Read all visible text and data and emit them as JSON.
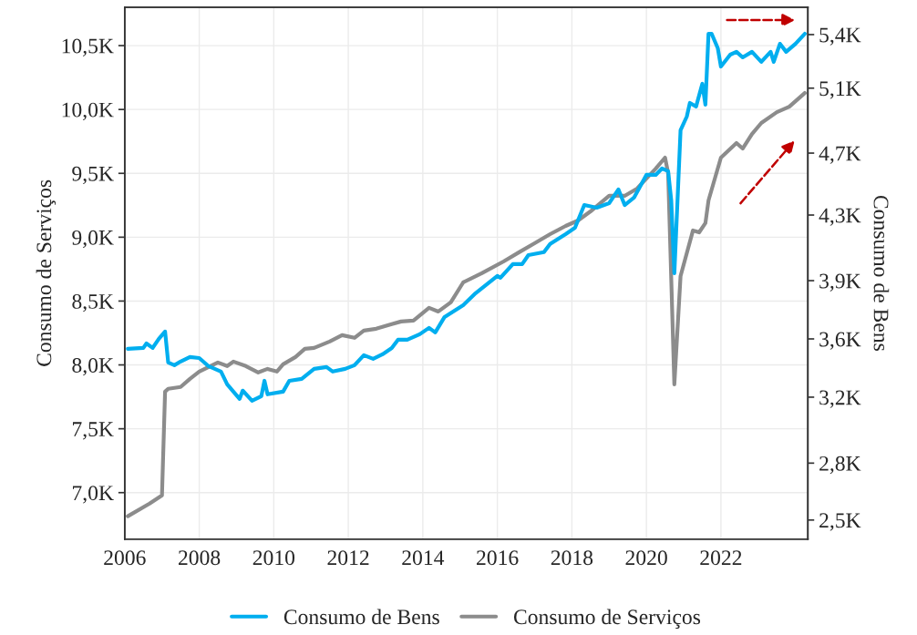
{
  "chart_data": {
    "type": "line",
    "xlabel": null,
    "ylabel": "Consumo de Serviços",
    "y2label": "Consumo de Bens",
    "xlim": [
      "2006-01",
      "2024-05"
    ],
    "xticks": [
      {
        "value": "2006",
        "label": "2006"
      },
      {
        "value": "2008",
        "label": "2008"
      },
      {
        "value": "2010",
        "label": "2010"
      },
      {
        "value": "2012",
        "label": "2012"
      },
      {
        "value": "2014",
        "label": "2014"
      },
      {
        "value": "2016",
        "label": "2016"
      },
      {
        "value": "2018",
        "label": "2018"
      },
      {
        "value": "2020",
        "label": "2020"
      },
      {
        "value": "2022",
        "label": "2022"
      }
    ],
    "ylim": [
      6.636,
      10.8
    ],
    "yticks": [
      {
        "value": 7.0,
        "label": "7,0K"
      },
      {
        "value": 7.5,
        "label": "7,5K"
      },
      {
        "value": 8.0,
        "label": "8,0K"
      },
      {
        "value": 8.5,
        "label": "8,5K"
      },
      {
        "value": 9.0,
        "label": "9,0K"
      },
      {
        "value": 9.5,
        "label": "9,5K"
      },
      {
        "value": 10.0,
        "label": "10,0K"
      },
      {
        "value": 10.5,
        "label": "10,5K"
      }
    ],
    "y2lim": [
      2.386,
      5.563
    ],
    "y2ticks": [
      {
        "value": 2.5,
        "label": "2,5K"
      },
      {
        "value": 2.84,
        "label": "2,8K"
      },
      {
        "value": 3.234,
        "label": "3,2K"
      },
      {
        "value": 3.582,
        "label": "3,6K"
      },
      {
        "value": 3.93,
        "label": "3,9K"
      },
      {
        "value": 4.322,
        "label": "4,3K"
      },
      {
        "value": 4.692,
        "label": "4,7K"
      },
      {
        "value": 5.08,
        "label": "5,1K"
      },
      {
        "value": 5.4,
        "label": "5,4K"
      }
    ],
    "grid": true,
    "legend": "bottom",
    "line_style": "solid",
    "marker": "none",
    "series": [
      {
        "name": "Consumo de Bens",
        "color": "#00aeef",
        "axis": "y2",
        "x": [
          "2006-02",
          "2006-07",
          "2006-08",
          "2006-10",
          "2006-12",
          "2007-02",
          "2007-03",
          "2007-05",
          "2007-07",
          "2007-10",
          "2008-01",
          "2008-04",
          "2008-08",
          "2008-10",
          "2008-12",
          "2009-02",
          "2009-03",
          "2009-06",
          "2009-09",
          "2009-10",
          "2009-11",
          "2010-04",
          "2010-06",
          "2010-10",
          "2011-02",
          "2011-06",
          "2011-08",
          "2011-12",
          "2012-03",
          "2012-06",
          "2012-09",
          "2012-12",
          "2013-03",
          "2013-05",
          "2013-08",
          "2013-12",
          "2014-03",
          "2014-05",
          "2014-08",
          "2015-02",
          "2015-06",
          "2016-01",
          "2016-02",
          "2016-06",
          "2016-09",
          "2016-11",
          "2017-04",
          "2017-06",
          "2017-11",
          "2018-02",
          "2018-05",
          "2018-09",
          "2019-01",
          "2019-04",
          "2019-06",
          "2019-09",
          "2020-01",
          "2020-04",
          "2020-06",
          "2020-08",
          "2020-09",
          "2020-10",
          "2020-12",
          "2021-02",
          "2021-03",
          "2021-05",
          "2021-07",
          "2021-08",
          "2021-09",
          "2021-10",
          "2021-12",
          "2022-01",
          "2022-04",
          "2022-06",
          "2022-08",
          "2022-11",
          "2023-02",
          "2023-05",
          "2023-06",
          "2023-08",
          "2023-10",
          "2024-01",
          "2024-04"
        ],
        "values": [
          3.523,
          3.528,
          3.555,
          3.528,
          3.583,
          3.626,
          3.441,
          3.425,
          3.447,
          3.474,
          3.468,
          3.419,
          3.387,
          3.311,
          3.267,
          3.224,
          3.273,
          3.213,
          3.24,
          3.332,
          3.251,
          3.267,
          3.332,
          3.343,
          3.403,
          3.414,
          3.387,
          3.403,
          3.425,
          3.485,
          3.463,
          3.49,
          3.528,
          3.577,
          3.577,
          3.61,
          3.648,
          3.621,
          3.713,
          3.784,
          3.855,
          3.958,
          3.947,
          4.029,
          4.029,
          4.083,
          4.1,
          4.149,
          4.208,
          4.246,
          4.382,
          4.366,
          4.393,
          4.475,
          4.382,
          4.426,
          4.562,
          4.562,
          4.6,
          4.584,
          4.41,
          3.974,
          4.829,
          4.91,
          4.992,
          4.97,
          5.106,
          4.981,
          5.405,
          5.405,
          5.318,
          5.209,
          5.28,
          5.297,
          5.264,
          5.297,
          5.237,
          5.297,
          5.237,
          5.345,
          5.297,
          5.345,
          5.405
        ]
      },
      {
        "name": "Consumo de Serviços",
        "color": "#8c8c8c",
        "x": [
          "2006-02",
          "2006-09",
          "2007-01",
          "2007-02",
          "2007-03",
          "2007-07",
          "2007-10",
          "2008-01",
          "2008-07",
          "2008-10",
          "2008-12",
          "2009-04",
          "2009-08",
          "2009-11",
          "2010-02",
          "2010-04",
          "2010-08",
          "2010-11",
          "2011-02",
          "2011-07",
          "2011-11",
          "2012-03",
          "2012-06",
          "2012-10",
          "2013-03",
          "2013-06",
          "2013-10",
          "2014-03",
          "2014-06",
          "2014-10",
          "2015-02",
          "2015-08",
          "2016-03",
          "2016-08",
          "2017-01",
          "2017-06",
          "2017-11",
          "2018-03",
          "2018-07",
          "2019-01",
          "2019-06",
          "2019-10",
          "2020-04",
          "2020-07",
          "2020-08",
          "2020-10",
          "2020-12",
          "2021-04",
          "2021-06",
          "2021-08",
          "2021-09",
          "2022-01",
          "2022-06",
          "2022-08",
          "2022-11",
          "2023-02",
          "2023-07",
          "2023-11",
          "2024-02",
          "2024-04"
        ],
        "values": [
          6.815,
          6.914,
          6.979,
          7.791,
          7.813,
          7.827,
          7.891,
          7.948,
          8.019,
          7.991,
          8.026,
          7.991,
          7.941,
          7.969,
          7.948,
          8.005,
          8.062,
          8.126,
          8.133,
          8.183,
          8.233,
          8.212,
          8.269,
          8.283,
          8.319,
          8.34,
          8.347,
          8.447,
          8.418,
          8.49,
          8.646,
          8.718,
          8.81,
          8.882,
          8.953,
          9.024,
          9.088,
          9.131,
          9.202,
          9.324,
          9.324,
          9.381,
          9.537,
          9.623,
          9.502,
          7.848,
          8.696,
          9.053,
          9.038,
          9.11,
          9.288,
          9.623,
          9.737,
          9.694,
          9.808,
          9.894,
          9.979,
          10.022,
          10.086,
          10.129
        ]
      }
    ]
  }
}
